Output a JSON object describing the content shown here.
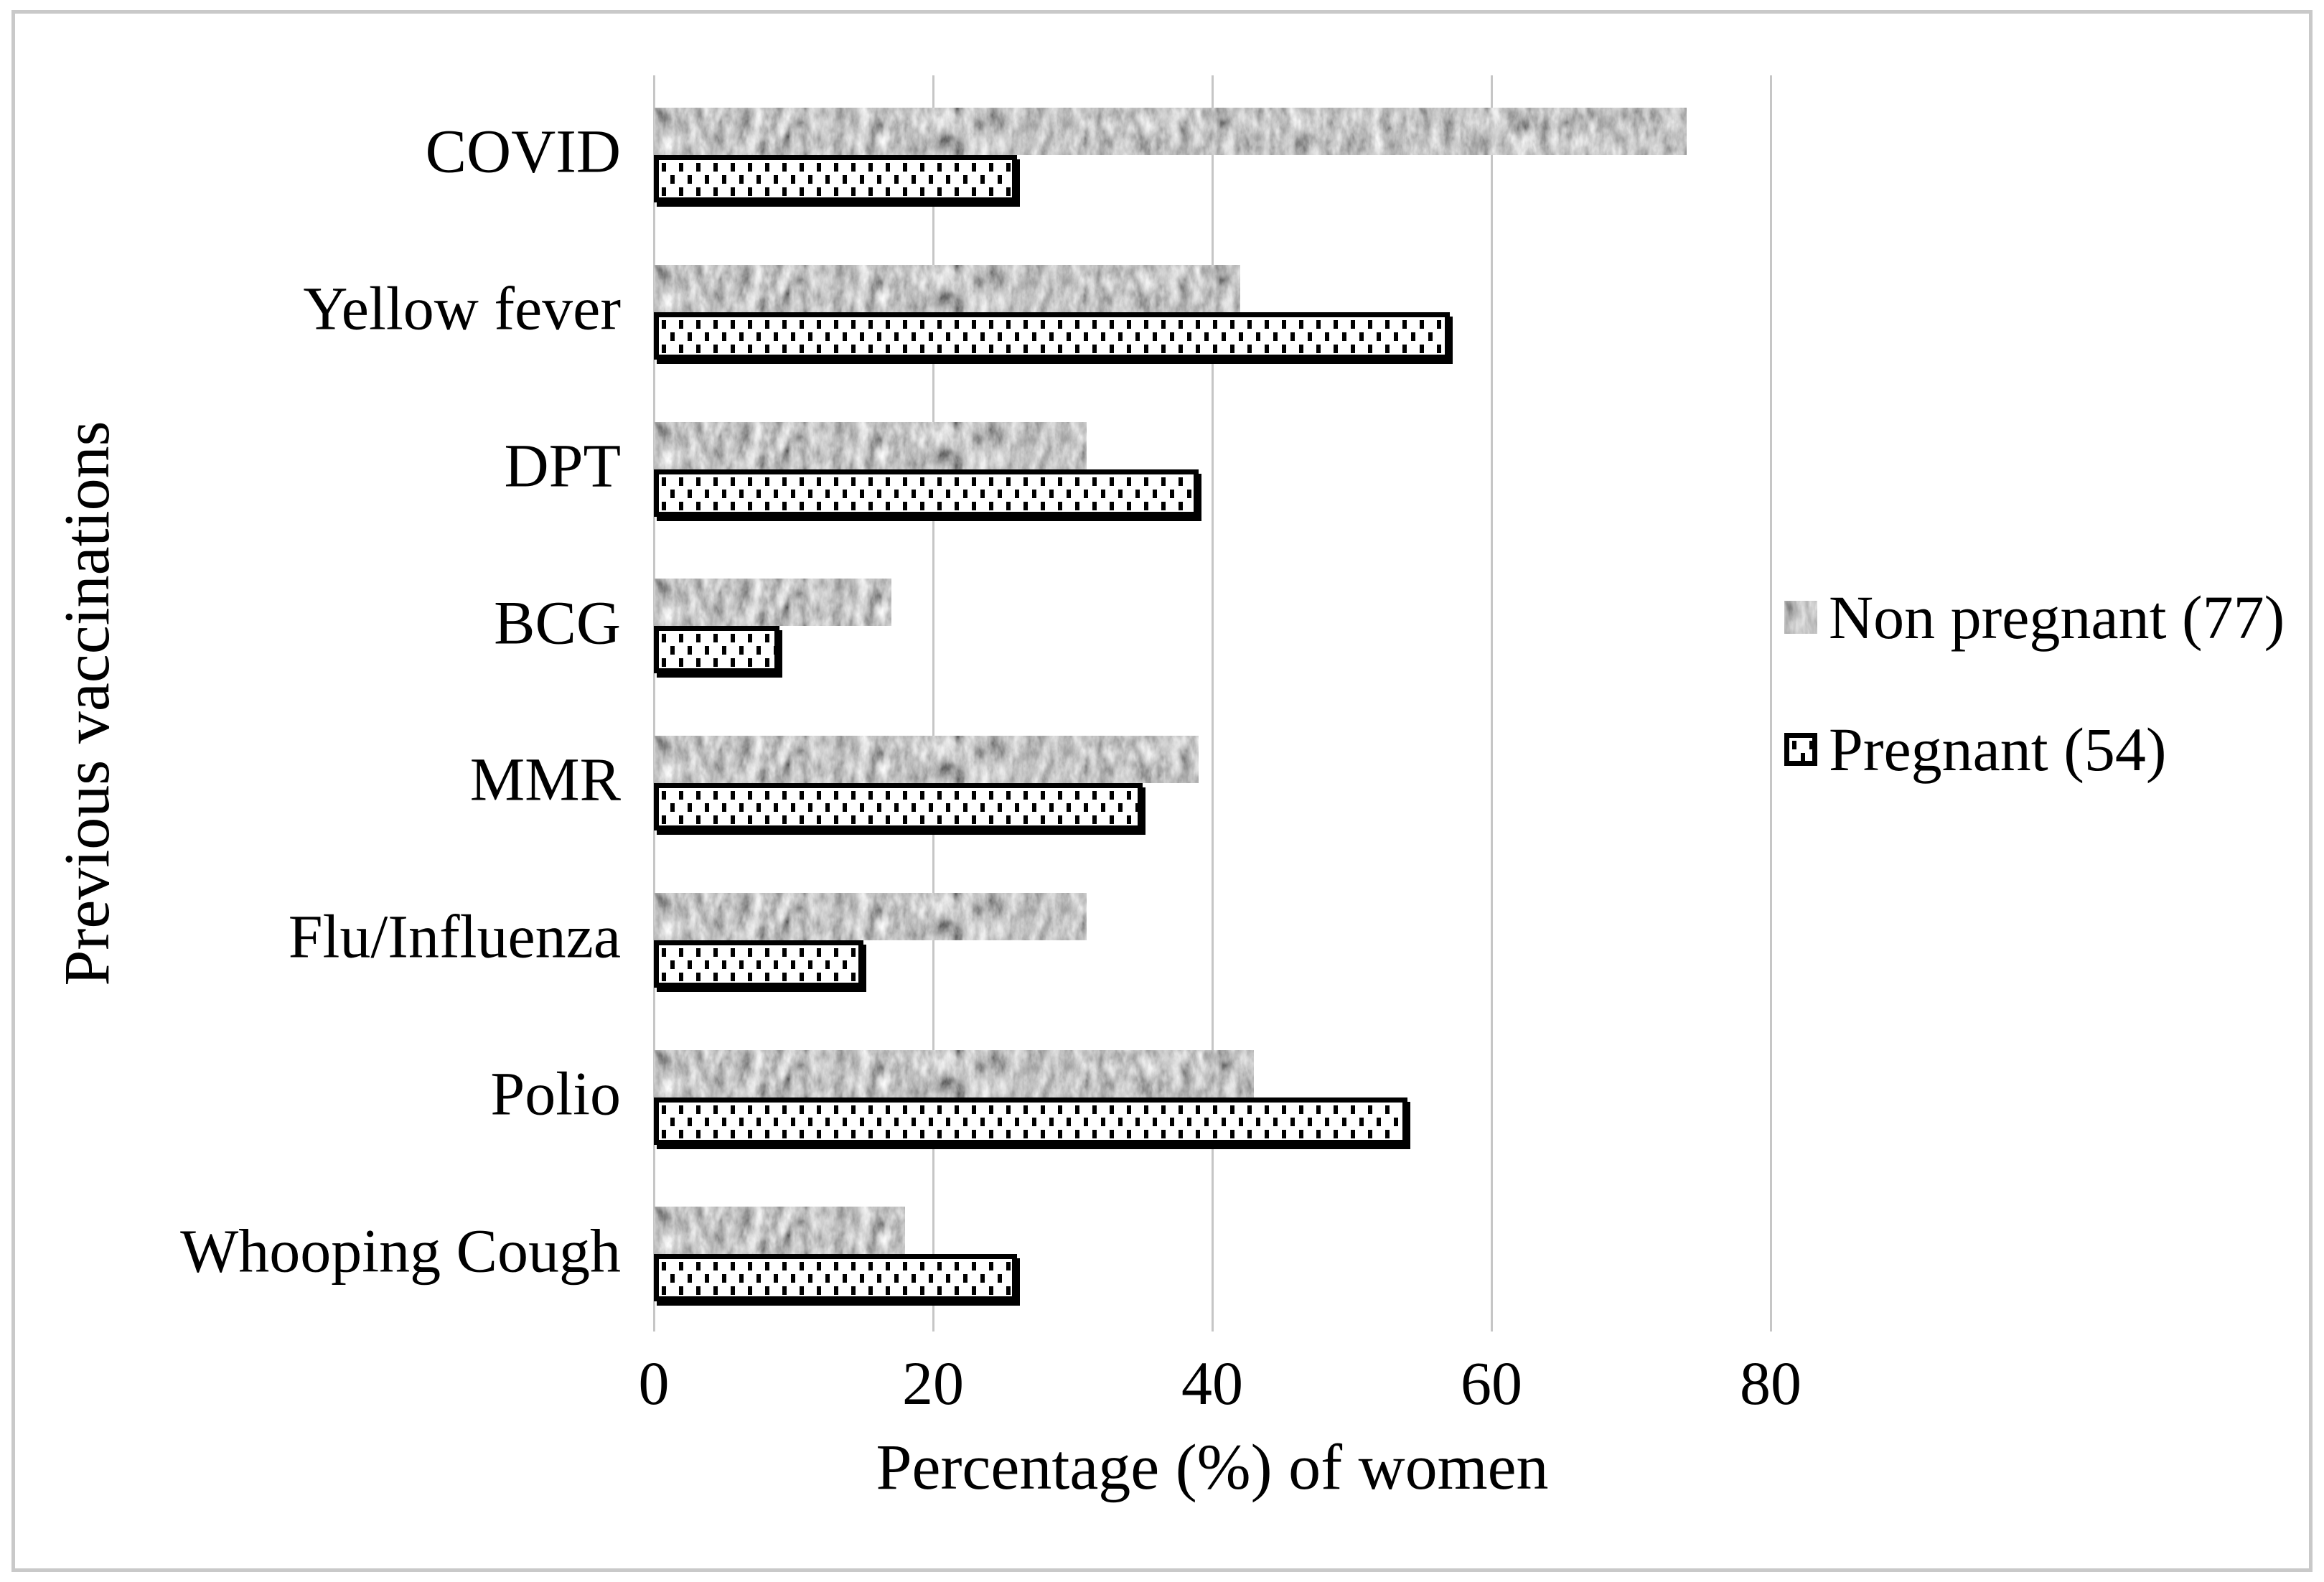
{
  "chart_data": {
    "type": "bar",
    "orientation": "horizontal",
    "title": "",
    "xlabel": "Percentage (%) of women",
    "ylabel": "Previous vaccinations",
    "xlim": [
      0,
      80
    ],
    "xticks": [
      0,
      20,
      40,
      60,
      80
    ],
    "grid": "vertical light-gray gridlines at each x tick",
    "legend_position": "right",
    "categories": [
      "COVID",
      "Yellow fever",
      "DPT",
      "BCG",
      "MMR",
      "Flu/Influenza",
      "Polio",
      "Whooping Cough"
    ],
    "series": [
      {
        "name": "Non pregnant (77)",
        "swatch": "gray-noise-texture",
        "values": [
          74,
          42,
          31,
          17,
          39,
          31,
          43,
          18
        ]
      },
      {
        "name": "Pregnant (54)",
        "swatch": "white-dotted-with-black-border",
        "values": [
          26,
          57,
          39,
          9,
          35,
          15,
          54,
          26
        ]
      }
    ]
  },
  "colors": {
    "background": "#ffffff",
    "frame_border": "#c9c9c9",
    "gridline": "#c6c6c6",
    "nonpregnant_fill": "#a8a8a8",
    "pregnant_border": "#000000",
    "text": "#000000"
  }
}
